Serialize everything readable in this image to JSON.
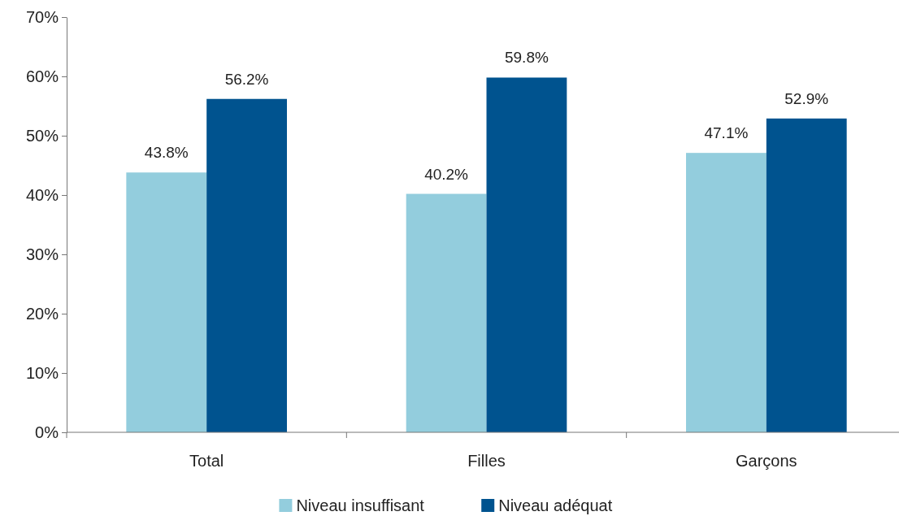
{
  "chart_data": {
    "type": "bar",
    "categories": [
      "Total",
      "Filles",
      "Garçons"
    ],
    "series": [
      {
        "name": "Niveau insuffisant",
        "color": "#93cddd",
        "values": [
          43.8,
          40.2,
          47.1
        ],
        "value_labels": [
          "43.8%",
          "40.2%",
          "47.1%"
        ]
      },
      {
        "name": "Niveau adéquat",
        "color": "#00538f",
        "values": [
          56.2,
          59.8,
          52.9
        ],
        "value_labels": [
          "56.2%",
          "59.8%",
          "52.9%"
        ]
      }
    ],
    "ylim": [
      0,
      70
    ],
    "yticks": [
      {
        "value": 0,
        "label": "0%"
      },
      {
        "value": 10,
        "label": "10%"
      },
      {
        "value": 20,
        "label": "20%"
      },
      {
        "value": 30,
        "label": "30%"
      },
      {
        "value": 40,
        "label": "40%"
      },
      {
        "value": 50,
        "label": "50%"
      },
      {
        "value": 60,
        "label": "60%"
      },
      {
        "value": 70,
        "label": "70%"
      }
    ],
    "grid": false,
    "legend": "bottom"
  }
}
